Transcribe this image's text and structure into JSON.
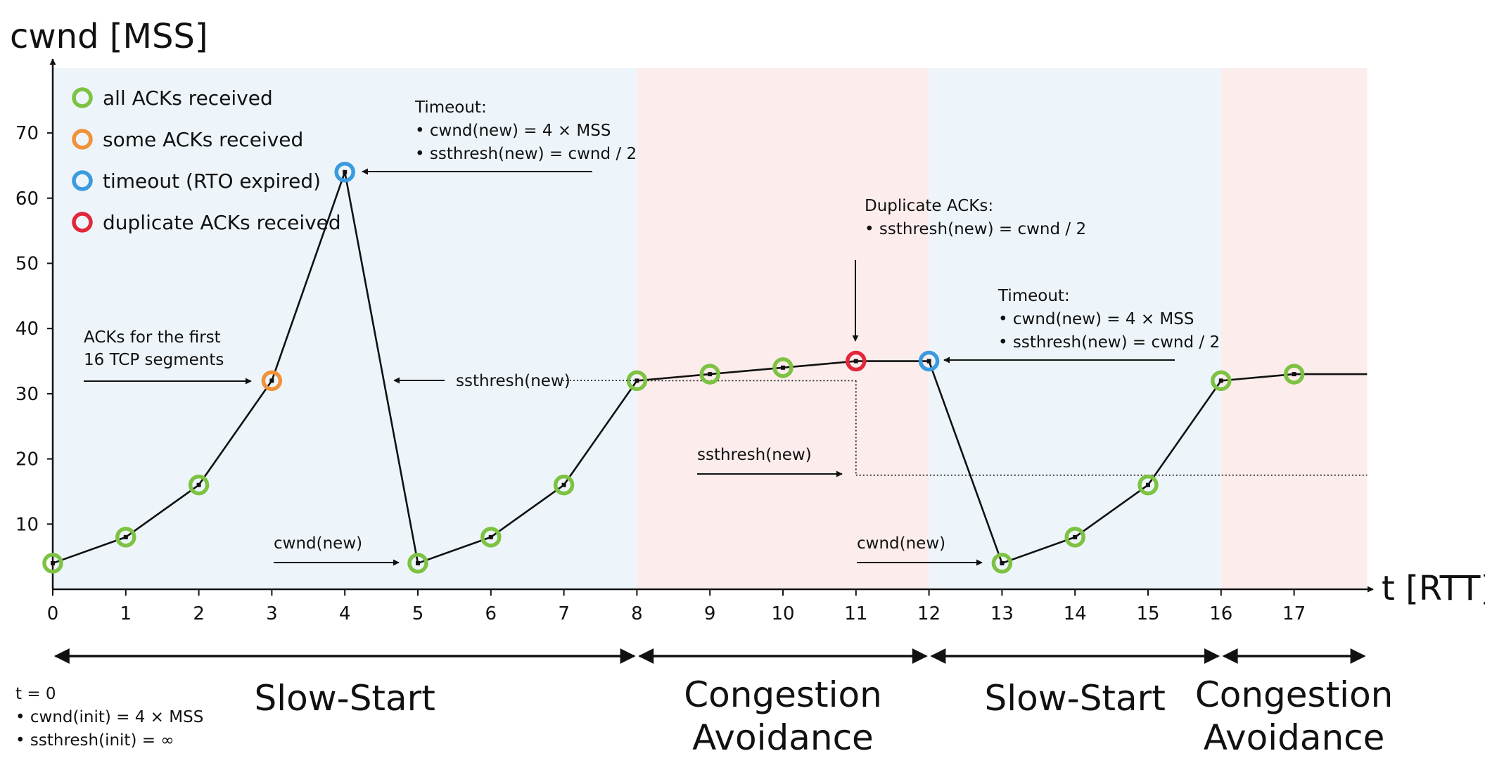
{
  "chart_data": {
    "type": "line",
    "ylabel": "cwnd [MSS]",
    "xlabel": "t [RTT]",
    "xlim": [
      0,
      18
    ],
    "ylim": [
      0,
      80
    ],
    "x_ticks": [
      0,
      1,
      2,
      3,
      4,
      5,
      6,
      7,
      8,
      9,
      10,
      11,
      12,
      13,
      14,
      15,
      16,
      17
    ],
    "y_ticks": [
      10,
      20,
      30,
      40,
      50,
      60,
      70
    ],
    "series": [
      {
        "x": [
          0,
          1,
          2,
          3,
          4,
          5,
          6,
          7,
          8,
          9,
          10,
          11,
          12,
          13,
          14,
          15,
          16,
          17,
          18
        ],
        "values": [
          4,
          8,
          16,
          32,
          64,
          4,
          8,
          16,
          32,
          33,
          34,
          35,
          35,
          4,
          8,
          16,
          32,
          33,
          33
        ]
      }
    ],
    "markers": [
      {
        "x": 0,
        "y": 4,
        "kind": "all"
      },
      {
        "x": 1,
        "y": 8,
        "kind": "all"
      },
      {
        "x": 2,
        "y": 16,
        "kind": "all"
      },
      {
        "x": 3,
        "y": 32,
        "kind": "some"
      },
      {
        "x": 4,
        "y": 64,
        "kind": "timeout"
      },
      {
        "x": 5,
        "y": 4,
        "kind": "all"
      },
      {
        "x": 6,
        "y": 8,
        "kind": "all"
      },
      {
        "x": 7,
        "y": 16,
        "kind": "all"
      },
      {
        "x": 8,
        "y": 32,
        "kind": "all"
      },
      {
        "x": 9,
        "y": 33,
        "kind": "all"
      },
      {
        "x": 10,
        "y": 34,
        "kind": "all"
      },
      {
        "x": 11,
        "y": 35,
        "kind": "dup"
      },
      {
        "x": 12,
        "y": 35,
        "kind": "timeout"
      },
      {
        "x": 13,
        "y": 4,
        "kind": "all"
      },
      {
        "x": 14,
        "y": 8,
        "kind": "all"
      },
      {
        "x": 15,
        "y": 16,
        "kind": "all"
      },
      {
        "x": 16,
        "y": 32,
        "kind": "all"
      },
      {
        "x": 17,
        "y": 33,
        "kind": "all"
      }
    ],
    "marker_colors": {
      "all": "#7dc243",
      "some": "#f0923a",
      "timeout": "#3a9be0",
      "dup": "#e0283a"
    },
    "legend": [
      {
        "kind": "all",
        "label": "all ACKs received"
      },
      {
        "kind": "some",
        "label": "some ACKs received"
      },
      {
        "kind": "timeout",
        "label": "timeout (RTO expired)"
      },
      {
        "kind": "dup",
        "label": "duplicate ACKs received"
      }
    ],
    "phases": [
      {
        "x_start": 0,
        "x_end": 8,
        "color": "#eef5fa",
        "lines": [
          "Slow-Start"
        ]
      },
      {
        "x_start": 8,
        "x_end": 12,
        "color": "#fcecec",
        "lines": [
          "Congestion",
          "Avoidance"
        ]
      },
      {
        "x_start": 12,
        "x_end": 16,
        "color": "#eef5fa",
        "lines": [
          "Slow-Start"
        ]
      },
      {
        "x_start": 16,
        "x_end": 18,
        "color": "#fcecec",
        "lines": [
          "Congestion",
          "Avoidance"
        ]
      }
    ],
    "thresholds": [
      {
        "y": 32,
        "x_start": 8,
        "x_end": 11
      },
      {
        "y": 17.5,
        "x_start": 11,
        "x_end": 18
      }
    ],
    "annotations": {
      "first_acks": [
        "ACKs for the first",
        "16 TCP segments"
      ],
      "timeout1": [
        "Timeout:",
        "• cwnd(new) = 4 × MSS",
        "• ssthresh(new) = cwnd / 2"
      ],
      "ssthresh1": "ssthresh(new)",
      "cwnd1": "cwnd(new)",
      "dup": [
        "Duplicate ACKs:",
        "• ssthresh(new) = cwnd / 2"
      ],
      "timeout2": [
        "Timeout:",
        "• cwnd(new) = 4 × MSS",
        "• ssthresh(new) = cwnd / 2"
      ],
      "ssthresh2": "ssthresh(new)",
      "cwnd2": "cwnd(new)",
      "init": [
        "t = 0",
        "• cwnd(init) = 4 × MSS",
        "• ssthresh(init) = ∞"
      ]
    }
  }
}
